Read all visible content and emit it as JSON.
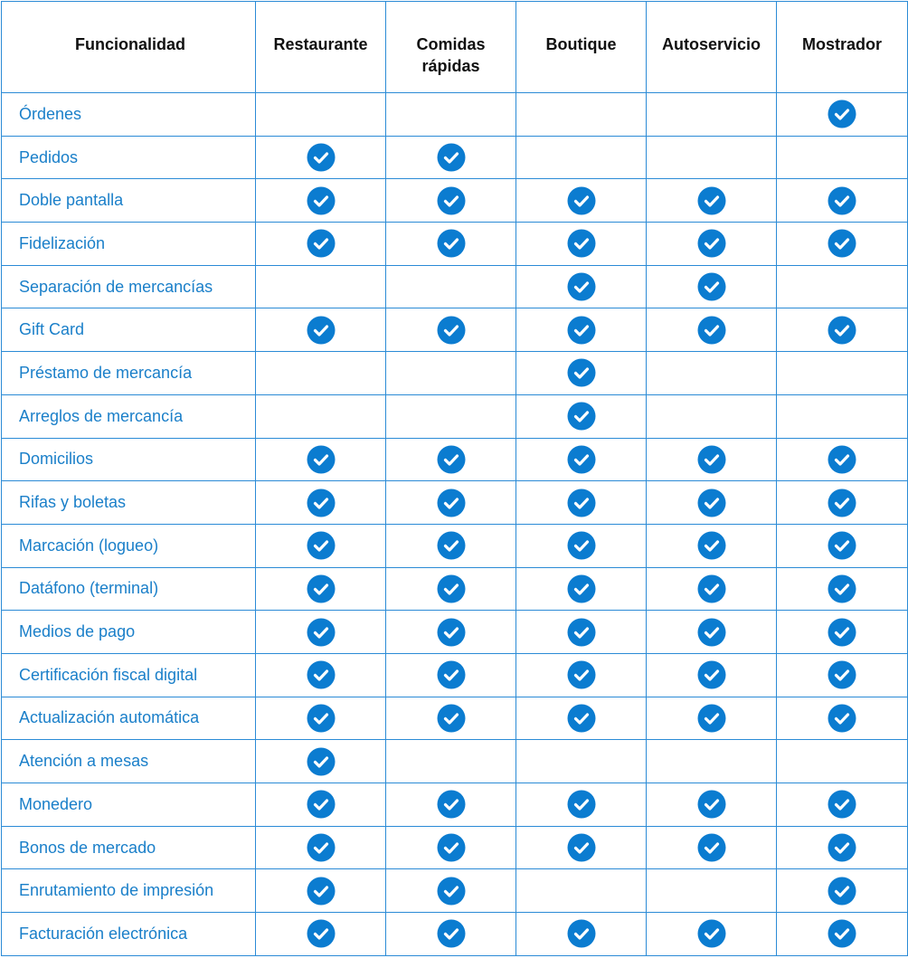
{
  "table": {
    "header": [
      "Funcionalidad",
      "Restaurante",
      "Comidas rápidas",
      "Boutique",
      "Autoservicio",
      "Mostrador"
    ],
    "rows": [
      {
        "label": "Órdenes",
        "checks": [
          false,
          false,
          false,
          false,
          true
        ]
      },
      {
        "label": "Pedidos",
        "checks": [
          true,
          true,
          false,
          false,
          false
        ]
      },
      {
        "label": "Doble pantalla",
        "checks": [
          true,
          true,
          true,
          true,
          true
        ]
      },
      {
        "label": "Fidelización",
        "checks": [
          true,
          true,
          true,
          true,
          true
        ]
      },
      {
        "label": "Separación de mercancías",
        "checks": [
          false,
          false,
          true,
          true,
          false
        ]
      },
      {
        "label": "Gift Card",
        "checks": [
          true,
          true,
          true,
          true,
          true
        ]
      },
      {
        "label": "Préstamo de mercancía",
        "checks": [
          false,
          false,
          true,
          false,
          false
        ]
      },
      {
        "label": "Arreglos de mercancía",
        "checks": [
          false,
          false,
          true,
          false,
          false
        ]
      },
      {
        "label": "Domicilios",
        "checks": [
          true,
          true,
          true,
          true,
          true
        ]
      },
      {
        "label": "Rifas y boletas",
        "checks": [
          true,
          true,
          true,
          true,
          true
        ]
      },
      {
        "label": "Marcación (logueo)",
        "checks": [
          true,
          true,
          true,
          true,
          true
        ]
      },
      {
        "label": "Datáfono (terminal)",
        "checks": [
          true,
          true,
          true,
          true,
          true
        ]
      },
      {
        "label": "Medios de pago",
        "checks": [
          true,
          true,
          true,
          true,
          true
        ]
      },
      {
        "label": "Certificación fiscal digital",
        "checks": [
          true,
          true,
          true,
          true,
          true
        ]
      },
      {
        "label": "Actualización automática",
        "checks": [
          true,
          true,
          true,
          true,
          true
        ]
      },
      {
        "label": "Atención a mesas",
        "checks": [
          true,
          false,
          false,
          false,
          false
        ]
      },
      {
        "label": "Monedero",
        "checks": [
          true,
          true,
          true,
          true,
          true
        ]
      },
      {
        "label": "Bonos de mercado",
        "checks": [
          true,
          true,
          true,
          true,
          true
        ]
      },
      {
        "label": "Enrutamiento de impresión",
        "checks": [
          true,
          true,
          false,
          false,
          true
        ]
      },
      {
        "label": "Facturación electrónica",
        "checks": [
          true,
          true,
          true,
          true,
          true
        ]
      }
    ]
  }
}
